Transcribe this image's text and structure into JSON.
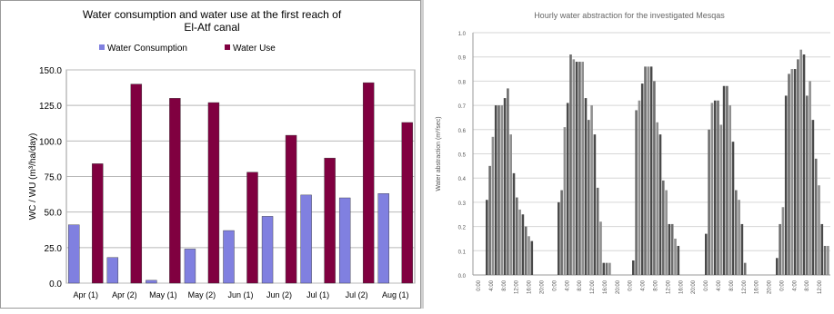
{
  "chart_data": [
    {
      "type": "bar",
      "title": "Water consumption and water use at the first reach of El-Atf canal",
      "title_lines": [
        "Water consumption and water use at the first reach of",
        "El-Atf canal"
      ],
      "xlabel": "",
      "ylabel": "WC / WU (m³/ha/day)",
      "ylim": [
        0,
        150
      ],
      "yticks": [
        "0.0",
        "25.0",
        "50.0",
        "75.0",
        "100.0",
        "125.0",
        "150.0"
      ],
      "grid": true,
      "legend_position": "top-center",
      "categories": [
        "Apr (1)",
        "Apr (2)",
        "May (1)",
        "May (2)",
        "Jun (1)",
        "Jun (2)",
        "Jul (1)",
        "Jul (2)",
        "Aug (1)"
      ],
      "series": [
        {
          "name": "Water Consumption",
          "color": "#8080e0",
          "values": [
            41,
            18,
            2,
            24,
            37,
            47,
            62,
            60,
            63
          ]
        },
        {
          "name": "Water Use",
          "color": "#800040",
          "values": [
            84,
            140,
            130,
            127,
            78,
            104,
            88,
            141,
            113
          ]
        }
      ]
    },
    {
      "type": "bar",
      "title": "Hourly water abstraction for the investigated Mesqas",
      "xlabel": "",
      "ylabel": "Water abstraction (m³/sec)",
      "ylim": [
        0,
        1.0
      ],
      "yticks": [
        "0.0",
        "0.1",
        "0.2",
        "0.3",
        "0.4",
        "0.5",
        "0.6",
        "0.7",
        "0.8",
        "0.9",
        "1.0"
      ],
      "grid": true,
      "x_tick_labels": [
        "0:00",
        "4:00",
        "8:00",
        "12:00",
        "16:00",
        "20:00",
        "0:00",
        "4:00",
        "8:00",
        "12:00",
        "16:00",
        "20:00",
        "0:00",
        "4:00",
        "8:00",
        "12:00",
        "16:00",
        "20:00",
        "0:00",
        "4:00",
        "8:00",
        "12:00",
        "16:00",
        "20:00",
        "0:00",
        "4:00",
        "8:00",
        "12:00"
      ],
      "groups": [
        {
          "values": [
            0.31,
            0.45,
            0.57,
            0.7,
            0.7,
            0.7,
            0.73,
            0.77,
            0.58,
            0.42,
            0.32,
            0.27,
            0.25,
            0.2,
            0.16,
            0.14
          ]
        },
        {
          "values": [
            0.3,
            0.35,
            0.61,
            0.71,
            0.91,
            0.89,
            0.88,
            0.88,
            0.88,
            0.73,
            0.64,
            0.7,
            0.58,
            0.36,
            0.22,
            0.05,
            0.05,
            0.05
          ]
        },
        {
          "values": [
            0.06,
            0.68,
            0.72,
            0.79,
            0.86,
            0.86,
            0.86,
            0.8,
            0.63,
            0.58,
            0.39,
            0.35,
            0.21,
            0.21,
            0.15,
            0.12
          ]
        },
        {
          "values": [
            0.17,
            0.6,
            0.71,
            0.72,
            0.72,
            0.62,
            0.78,
            0.78,
            0.7,
            0.55,
            0.35,
            0.31,
            0.21,
            0.05
          ]
        },
        {
          "values": [
            0.07,
            0.21,
            0.28,
            0.74,
            0.83,
            0.85,
            0.85,
            0.89,
            0.93,
            0.91,
            0.74,
            0.8,
            0.64,
            0.48,
            0.37,
            0.21,
            0.12,
            0.12
          ]
        }
      ]
    }
  ]
}
